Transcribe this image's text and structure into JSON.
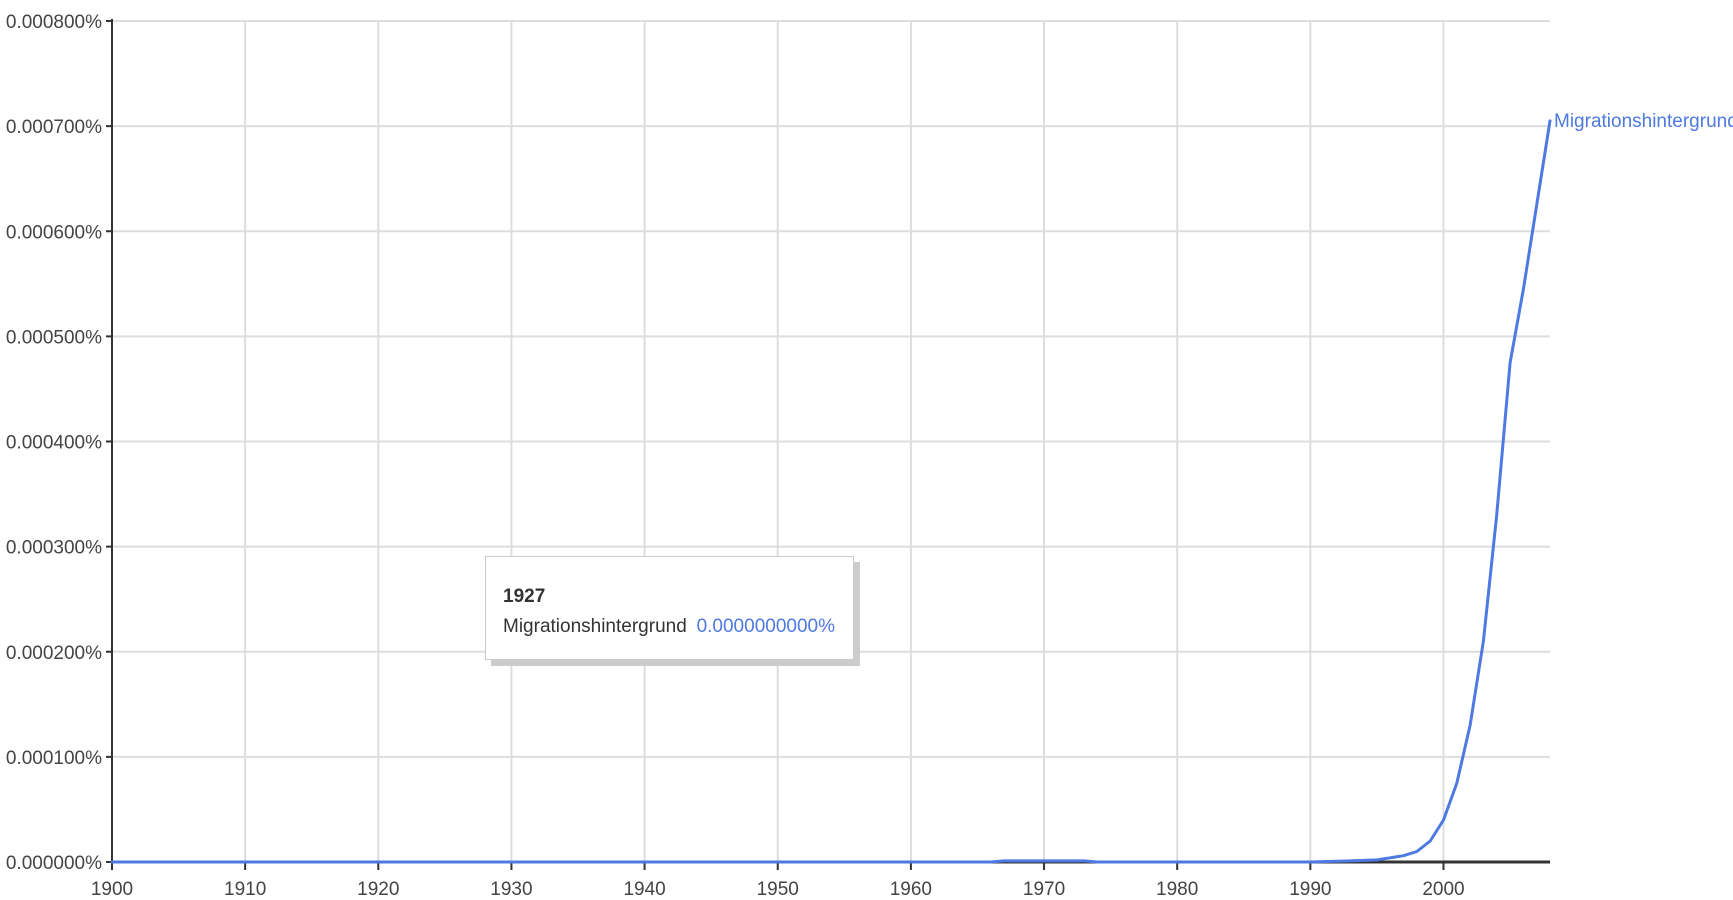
{
  "chart_data": {
    "type": "line",
    "title": "",
    "xlabel": "",
    "ylabel": "",
    "xlim": [
      1900,
      2008
    ],
    "ylim": [
      0,
      0.0008
    ],
    "x_ticks": [
      1900,
      1910,
      1920,
      1930,
      1940,
      1950,
      1960,
      1970,
      1980,
      1990,
      2000
    ],
    "x_tick_labels": [
      "1900",
      "1910",
      "1920",
      "1930",
      "1940",
      "1950",
      "1960",
      "1970",
      "1980",
      "1990",
      "2000"
    ],
    "y_ticks": [
      0,
      0.0001,
      0.0002,
      0.0003,
      0.0004,
      0.0005,
      0.0006,
      0.0007,
      0.0008
    ],
    "y_tick_labels": [
      "0.000000%",
      "0.000100%",
      "0.000200%",
      "0.000300%",
      "0.000400%",
      "0.000500%",
      "0.000600%",
      "0.000700%",
      "0.000800%"
    ],
    "grid": true,
    "series": [
      {
        "name": "Migrationshintergrund",
        "color": "#4d79e0",
        "x": [
          1900,
          1966,
          1967,
          1970,
          1973,
          1974,
          1990,
          1993,
          1995,
          1996,
          1997,
          1998,
          1999,
          2000,
          2001,
          2002,
          2003,
          2004,
          2005,
          2006,
          2007,
          2008
        ],
        "values": [
          0,
          0,
          1e-06,
          1e-06,
          1e-06,
          0,
          0,
          1e-06,
          2e-06,
          4e-06,
          6e-06,
          1e-05,
          2e-05,
          4e-05,
          7.5e-05,
          0.00013,
          0.00021,
          0.00033,
          0.000475,
          0.000545,
          0.000625,
          0.000705
        ]
      }
    ],
    "annotations": [
      {
        "type": "tooltip",
        "year": "1927",
        "series": "Migrationshintergrund",
        "value": "0.0000000000%"
      }
    ]
  }
}
